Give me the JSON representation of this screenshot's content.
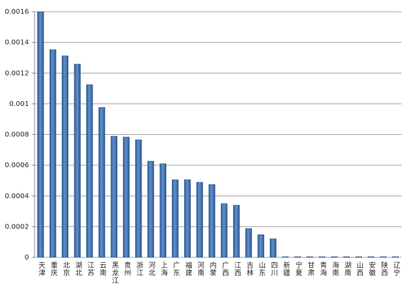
{
  "chart_data": {
    "type": "bar",
    "categories": [
      "天津",
      "重庆",
      "北京",
      "湖北",
      "江苏",
      "云南",
      "黑龙江",
      "贵州",
      "浙江",
      "河北",
      "上海",
      "广东",
      "福建",
      "河南",
      "内蒙",
      "广西",
      "江西",
      "吉林",
      "山东",
      "四川",
      "新疆",
      "宁夏",
      "甘肃",
      "青海",
      "海南",
      "湖南",
      "山西",
      "安徽",
      "陕西",
      "辽宁"
    ],
    "values": [
      0.0016,
      0.001353,
      0.001313,
      0.001259,
      0.001125,
      0.000977,
      0.000789,
      0.000784,
      0.000766,
      0.000627,
      0.00061,
      0.000506,
      0.000506,
      0.000489,
      0.000475,
      0.00035,
      0.00034,
      0.000188,
      0.000148,
      0.000121,
      0,
      0,
      0,
      0,
      0,
      0,
      0,
      0,
      0,
      0
    ],
    "color": "#4f81bd",
    "ylim": [
      0,
      0.0016
    ],
    "yticks": [
      0,
      0.0002,
      0.0004,
      0.0006,
      0.0008,
      0.001,
      0.0012,
      0.0014,
      0.0016
    ],
    "grid": true
  }
}
